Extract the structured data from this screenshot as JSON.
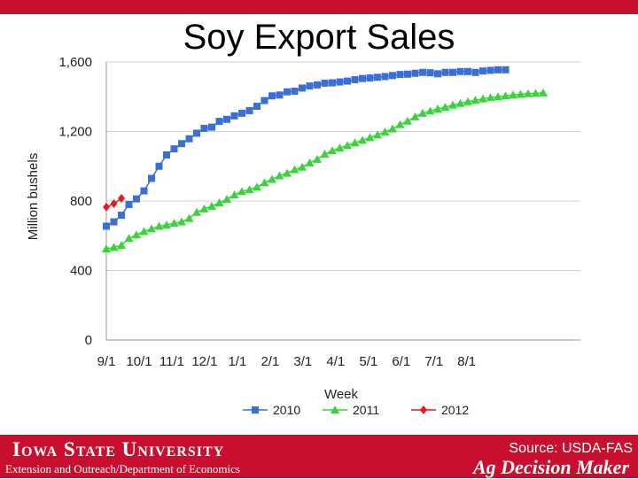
{
  "chart_data": {
    "type": "line",
    "title": "Soy Export Sales",
    "xlabel": "Week",
    "ylabel": "Million bushels",
    "ylim": [
      0,
      1600
    ],
    "yticks": [
      0,
      400,
      800,
      1200,
      1600
    ],
    "ytick_labels": [
      "0",
      "400",
      "800",
      "1,200",
      "1,600"
    ],
    "xtick_labels": [
      "9/1",
      "10/1",
      "11/1",
      "12/1",
      "1/1",
      "2/1",
      "3/1",
      "4/1",
      "5/1",
      "6/1",
      "7/1",
      "8/1"
    ],
    "x_weeks_per_month": 4.35,
    "grid": true,
    "legend": "bottom",
    "series": [
      {
        "name": "2010",
        "color": "#3a6fd8",
        "marker": "square",
        "values": [
          655,
          680,
          718,
          780,
          812,
          858,
          930,
          1000,
          1065,
          1100,
          1130,
          1158,
          1190,
          1218,
          1225,
          1258,
          1270,
          1290,
          1305,
          1320,
          1345,
          1378,
          1405,
          1410,
          1428,
          1432,
          1450,
          1462,
          1468,
          1478,
          1480,
          1485,
          1490,
          1498,
          1505,
          1508,
          1512,
          1516,
          1522,
          1528,
          1530,
          1535,
          1540,
          1538,
          1532,
          1540,
          1540,
          1545,
          1545,
          1540,
          1548,
          1552,
          1555,
          1555
        ]
      },
      {
        "name": "2011",
        "color": "#39d43a",
        "marker": "triangle",
        "values": [
          525,
          533,
          545,
          585,
          605,
          625,
          640,
          655,
          662,
          672,
          680,
          700,
          735,
          755,
          770,
          790,
          810,
          835,
          855,
          865,
          880,
          905,
          925,
          945,
          960,
          980,
          995,
          1020,
          1040,
          1070,
          1090,
          1105,
          1120,
          1135,
          1150,
          1165,
          1180,
          1198,
          1215,
          1240,
          1260,
          1285,
          1305,
          1318,
          1330,
          1340,
          1352,
          1362,
          1372,
          1380,
          1388,
          1395,
          1400,
          1405,
          1410,
          1414,
          1418,
          1420,
          1422
        ]
      },
      {
        "name": "2012",
        "color": "#e41a1c",
        "marker": "diamond",
        "values": [
          765,
          785,
          815
        ]
      }
    ]
  },
  "footer": {
    "university": "Iowa State University",
    "department": "Extension and Outreach/Department of Economics",
    "source": "Source: USDA-FAS",
    "brand": "Ag Decision Maker"
  }
}
